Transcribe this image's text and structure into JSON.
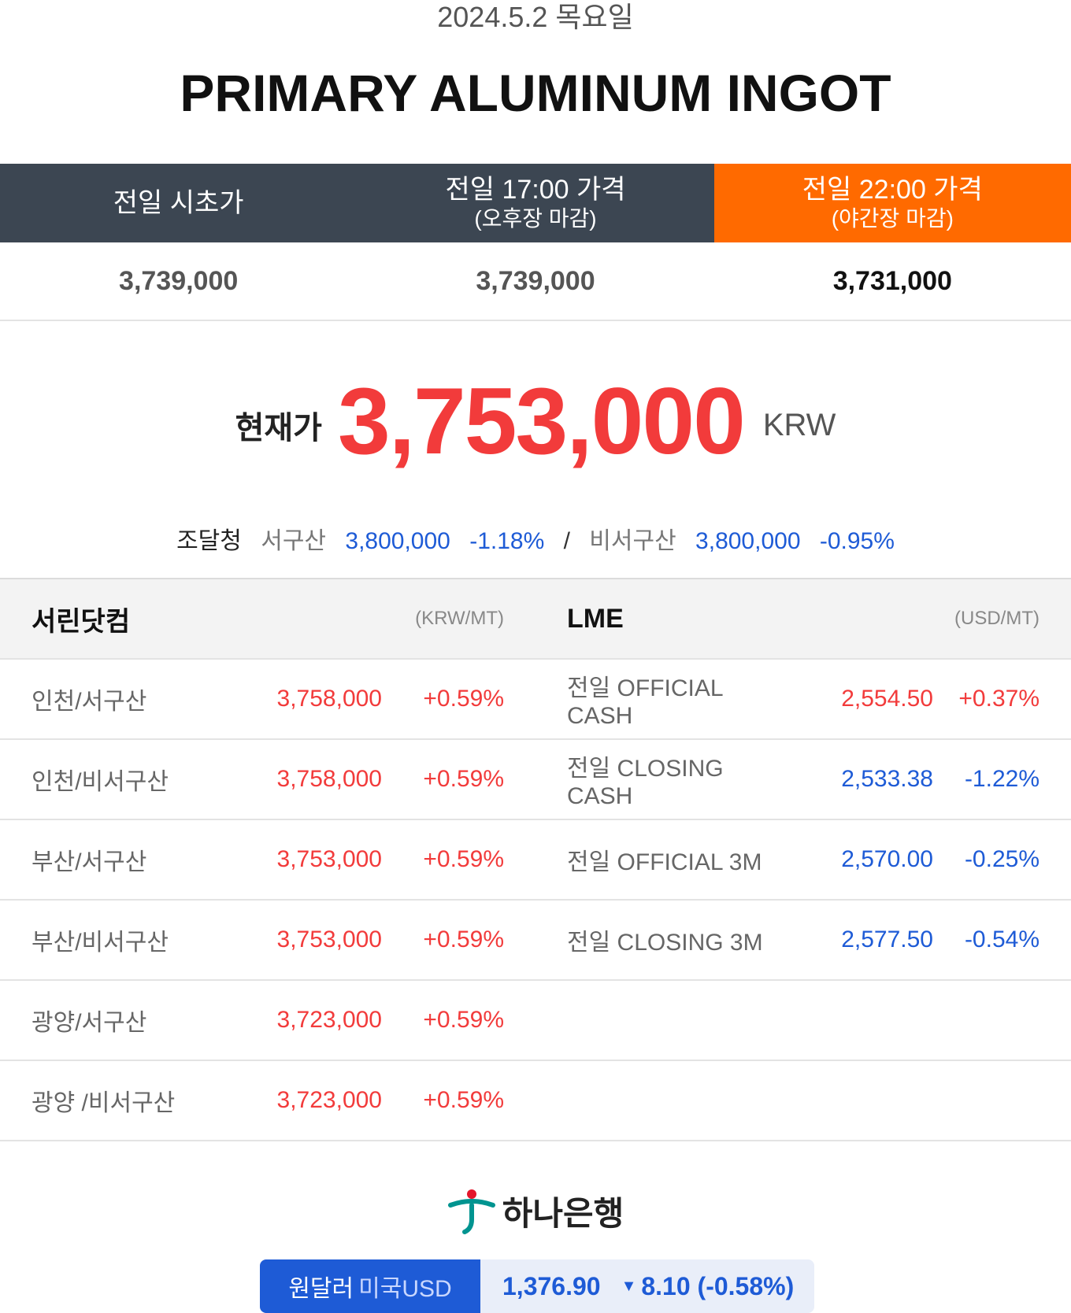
{
  "date": "2024.5.2 목요일",
  "title": "PRIMARY ALUMINUM INGOT",
  "price_headers": [
    {
      "main": "전일 시초가",
      "sub": ""
    },
    {
      "main": "전일 17:00 가격",
      "sub": "(오후장 마감)"
    },
    {
      "main": "전일 22:00 가격",
      "sub": "(야간장 마감)"
    }
  ],
  "price_values": [
    "3,739,000",
    "3,739,000",
    "3,731,000"
  ],
  "current": {
    "label": "현재가",
    "price": "3,753,000",
    "unit": "KRW"
  },
  "pps": {
    "label": "조달청",
    "a_name": "서구산",
    "a_price": "3,800,000",
    "a_change": "-1.18%",
    "sep": "/",
    "b_name": "비서구산",
    "b_price": "3,800,000",
    "b_change": "-0.95%"
  },
  "table": {
    "left_title": "서린닷컴",
    "left_unit": "(KRW/MT)",
    "right_title": "LME",
    "right_unit": "(USD/MT)",
    "left_rows": [
      {
        "name": "인천/서구산",
        "price": "3,758,000",
        "change": "+0.59%"
      },
      {
        "name": "인천/비서구산",
        "price": "3,758,000",
        "change": "+0.59%"
      },
      {
        "name": "부산/서구산",
        "price": "3,753,000",
        "change": "+0.59%"
      },
      {
        "name": "부산/비서구산",
        "price": "3,753,000",
        "change": "+0.59%"
      },
      {
        "name": "광양/서구산",
        "price": "3,723,000",
        "change": "+0.59%"
      },
      {
        "name": "광양 /비서구산",
        "price": "3,723,000",
        "change": "+0.59%"
      }
    ],
    "right_rows": [
      {
        "name": "전일 OFFICIAL CASH",
        "price": "2,554.50",
        "change": "+0.37%"
      },
      {
        "name": "전일 CLOSING CASH",
        "price": "2,533.38",
        "change": "-1.22%"
      },
      {
        "name": "전일 OFFICIAL 3M",
        "price": "2,570.00",
        "change": "-0.25%"
      },
      {
        "name": "전일 CLOSING 3M",
        "price": "2,577.50",
        "change": "-0.54%"
      }
    ]
  },
  "bank": {
    "name": "하나은행"
  },
  "fx": {
    "label": "원달러",
    "currency": "미국USD",
    "rate": "1,376.90",
    "change": "8.10 (-0.58%)",
    "direction_icon": "triangle-down-icon"
  },
  "colors": {
    "up": "#f23b3b",
    "down": "#1e5bd6",
    "accent": "#ff6a00",
    "header_dark": "#3c4652"
  }
}
